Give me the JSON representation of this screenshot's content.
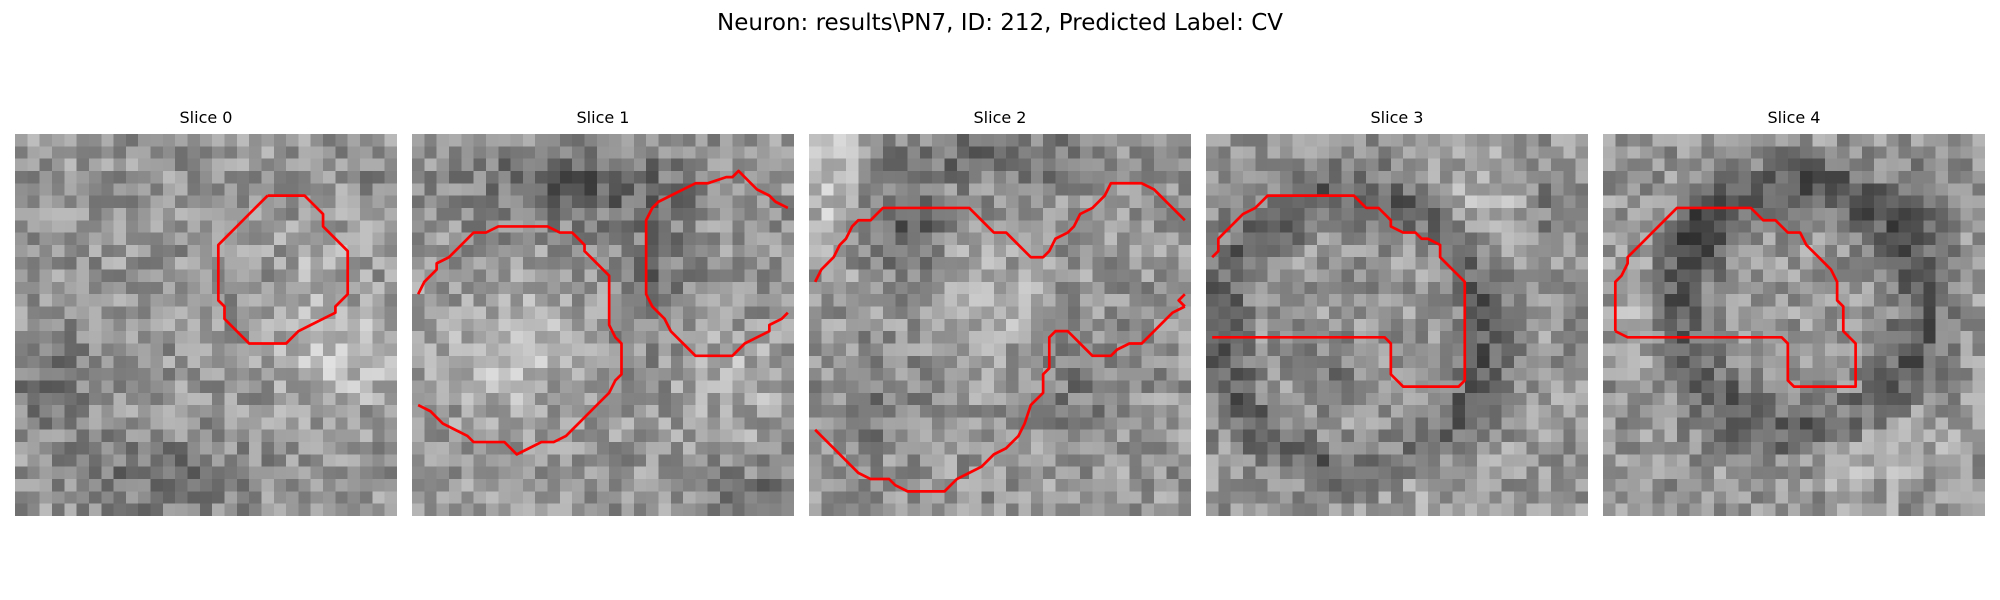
{
  "figure": {
    "title": "Neuron: results\\PN7, ID: 212, Predicted Label: CV"
  },
  "panels": [
    {
      "title": "Slice 0"
    },
    {
      "title": "Slice 1"
    },
    {
      "title": "Slice 2"
    },
    {
      "title": "Slice 3"
    },
    {
      "title": "Slice 4"
    }
  ],
  "colors": {
    "contour": "#ff0000",
    "background": "#ffffff"
  }
}
